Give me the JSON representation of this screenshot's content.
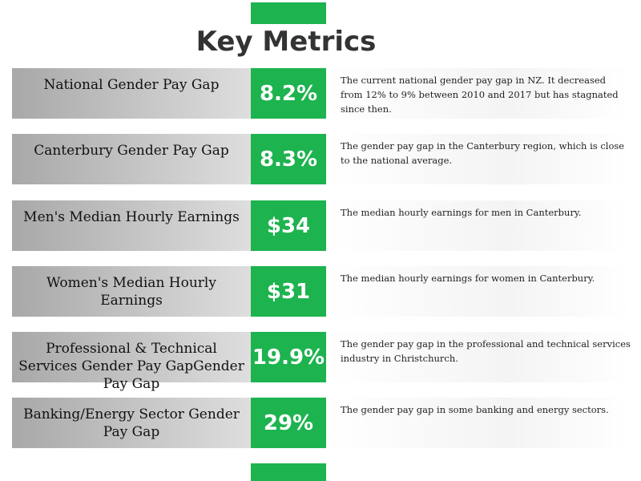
{
  "header": {
    "title": "Key Metrics"
  },
  "metrics": [
    {
      "label": "National Gender Pay Gap",
      "value": "8.2%",
      "description": "The current national gender pay gap in NZ. It decreased from 12% to 9% between 2010 and 2017 but has stagnated since then."
    },
    {
      "label": "Canterbury Gender Pay Gap",
      "value": "8.3%",
      "description": "The gender pay gap in the Canterbury region, which is close to the national average."
    },
    {
      "label": "Men's Median Hourly Earnings",
      "value": "$34",
      "description": "The median hourly earnings for men in Canterbury."
    },
    {
      "label": "Women's Median Hourly Earnings",
      "value": "$31",
      "description": "The median hourly earnings for women in Canterbury."
    },
    {
      "label": "Professional & Technical Services Gender Pay GapGender Pay Gap",
      "value": "19.9%",
      "description": "The gender pay gap in the professional and technical services industry in Christchurch."
    },
    {
      "label": "Banking/Energy Sector Gender Pay Gap",
      "value": "29%",
      "description": "The gender pay gap in some banking and energy sectors."
    }
  ]
}
